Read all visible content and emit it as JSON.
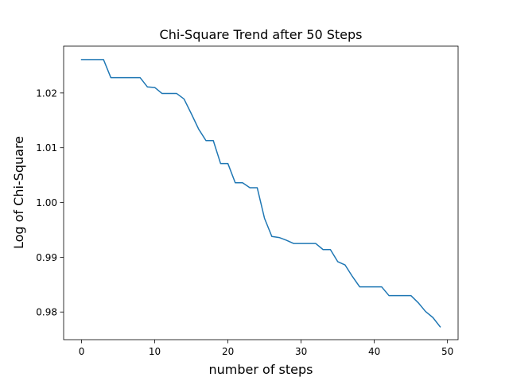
{
  "chart_data": {
    "type": "line",
    "title": "Chi-Square Trend after 50 Steps",
    "xlabel": "number of steps",
    "ylabel": "Log of Chi-Square",
    "xlim": [
      -2.45,
      51.45
    ],
    "ylim": [
      0.97495,
      1.02855
    ],
    "xticks": [
      0,
      10,
      20,
      30,
      40,
      50
    ],
    "yticks": [
      0.98,
      0.99,
      1.0,
      1.01,
      1.02
    ],
    "ytick_labels": [
      "0.98",
      "0.99",
      "1.00",
      "1.01",
      "1.02"
    ],
    "xtick_labels": [
      "0",
      "10",
      "20",
      "30",
      "40",
      "50"
    ],
    "grid": false,
    "color": "#1f77b4",
    "series": [
      {
        "x": [
          0,
          1,
          2,
          3,
          4,
          5,
          6,
          7,
          8,
          9,
          10,
          11,
          12,
          13,
          14,
          15,
          16,
          17,
          18,
          19,
          20,
          21,
          22,
          23,
          24,
          25,
          26,
          27,
          28,
          29,
          30,
          31,
          32,
          33,
          34,
          35,
          36,
          37,
          38,
          39,
          40,
          41,
          42,
          43,
          44,
          45,
          46,
          47,
          48,
          49
        ],
        "values": [
          1.0261,
          1.0261,
          1.0261,
          1.0261,
          1.0228,
          1.0228,
          1.0228,
          1.0228,
          1.0228,
          1.0211,
          1.021,
          1.0199,
          1.0199,
          1.0199,
          1.0189,
          1.0162,
          1.0134,
          1.0113,
          1.0113,
          1.0071,
          1.0071,
          1.0036,
          1.0036,
          1.0027,
          1.0027,
          0.9971,
          0.9938,
          0.9936,
          0.9931,
          0.9925,
          0.9925,
          0.9925,
          0.9925,
          0.9914,
          0.9914,
          0.9892,
          0.9886,
          0.9865,
          0.9846,
          0.9846,
          0.9846,
          0.9846,
          0.983,
          0.983,
          0.983,
          0.983,
          0.9817,
          0.9801,
          0.979,
          0.9773
        ]
      }
    ]
  }
}
